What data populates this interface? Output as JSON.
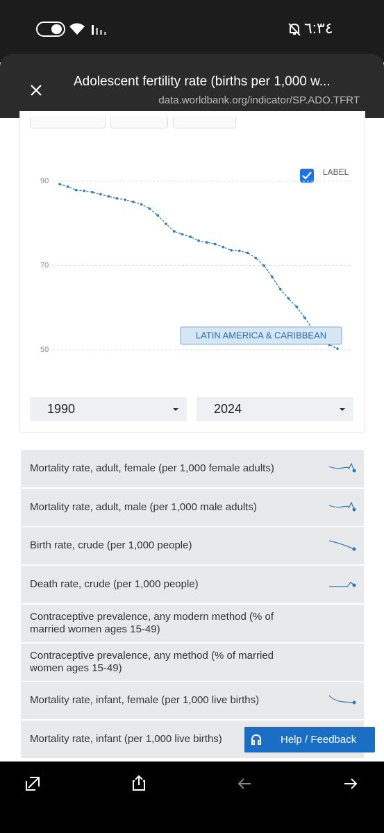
{
  "status_bar": {
    "time": "٦:٣٤"
  },
  "header": {
    "title": "Adolescent fertility rate (births per 1,000 w...",
    "url": "data.worldbank.org/indicator/SP.ADO.TFRT"
  },
  "chart_data": {
    "type": "line",
    "x": [
      1990,
      1991,
      1992,
      1993,
      1994,
      1995,
      1996,
      1997,
      1998,
      1999,
      2000,
      2001,
      2002,
      2003,
      2004,
      2005,
      2006,
      2007,
      2008,
      2009,
      2010,
      2011,
      2012,
      2013,
      2014,
      2015,
      2016,
      2017,
      2018,
      2019,
      2020,
      2021,
      2022,
      2023,
      2024
    ],
    "series": [
      {
        "name": "LATIN AMERICA & CARIBBEAN",
        "color": "#2f79b5",
        "values": [
          89.3,
          88.7,
          87.9,
          87.7,
          87.4,
          86.9,
          86.4,
          85.9,
          85.6,
          85.1,
          84.5,
          83.5,
          81.9,
          79.9,
          78.1,
          77.4,
          76.8,
          75.9,
          75.5,
          75.1,
          74.4,
          73.6,
          73.5,
          73.0,
          71.8,
          70.0,
          67.3,
          64.4,
          62.2,
          60.2,
          57.6,
          54.8,
          52.3,
          51.2,
          50.3
        ]
      }
    ],
    "xlim": [
      1990,
      2024
    ],
    "ylim": [
      50,
      90
    ],
    "yticks": [
      50,
      70,
      90
    ],
    "grid": true,
    "label_toggle": "LABEL"
  },
  "range": {
    "start": "1990",
    "end": "2024"
  },
  "related_indicators": [
    "Mortality rate, adult, female (per 1,000 female adults)",
    "Mortality rate, adult, male (per 1,000 male adults)",
    "Birth rate, crude (per 1,000 people)",
    "Death rate, crude (per 1,000 people)",
    "Contraceptive prevalence, any modern method (% of married women ages 15-49)",
    "Contraceptive prevalence, any method (% of married women ages 15-49)",
    "Mortality rate, infant, female (per 1,000 live births)",
    "Mortality rate, infant (per 1,000 live births)"
  ],
  "help_button": "Help / Feedback"
}
